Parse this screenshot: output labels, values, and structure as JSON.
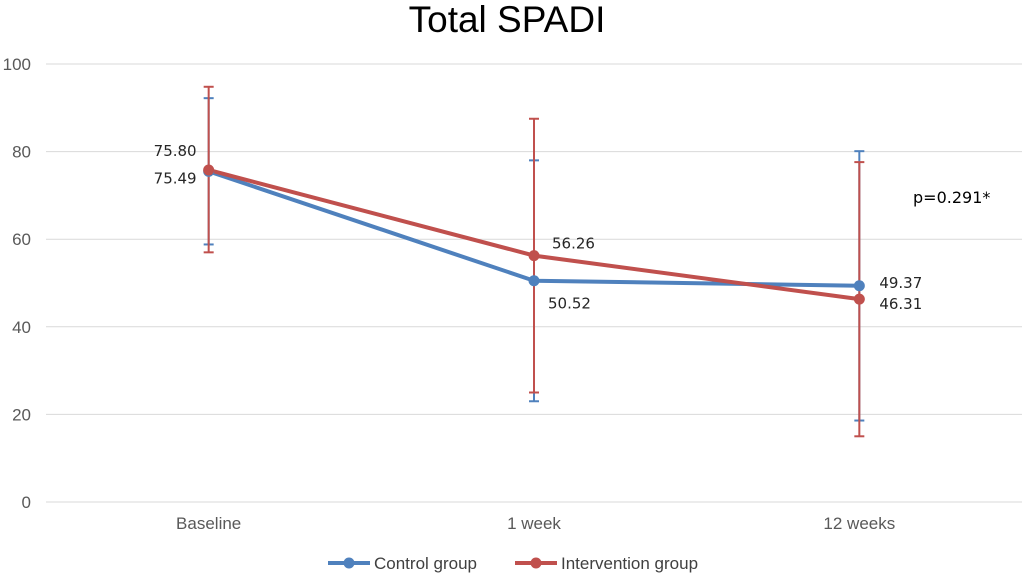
{
  "chart_data": {
    "type": "line",
    "title": "Total SPADI",
    "categories": [
      "Baseline",
      "1 week",
      "12 weeks"
    ],
    "ylim": [
      0,
      100
    ],
    "yticks": [
      0,
      20,
      40,
      60,
      80,
      100
    ],
    "grid": true,
    "legend_position": "bottom",
    "series": [
      {
        "name": "Control group",
        "color": "#4f81bd",
        "values": [
          75.49,
          50.52,
          49.37
        ],
        "labels": [
          "75.49",
          "50.52",
          "49.37"
        ],
        "error_low": [
          58.8,
          23.0,
          18.6
        ],
        "error_high": [
          92.2,
          78.0,
          80.1
        ]
      },
      {
        "name": "Intervention group",
        "color": "#c0504d",
        "values": [
          75.8,
          56.26,
          46.31
        ],
        "labels": [
          "75.80",
          "56.26",
          "46.31"
        ],
        "error_low": [
          57.0,
          25.0,
          15.0
        ],
        "error_high": [
          94.8,
          87.5,
          77.6
        ]
      }
    ],
    "annotation": "p=0.291*"
  }
}
